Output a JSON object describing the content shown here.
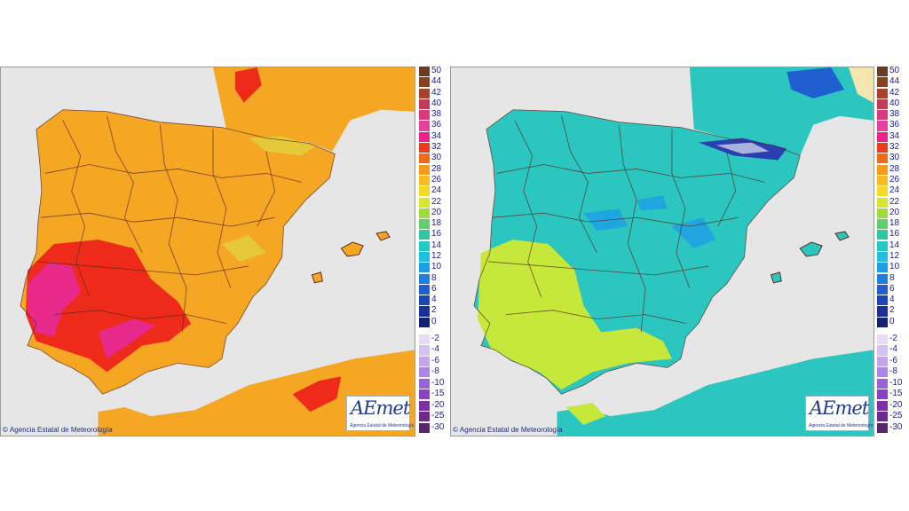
{
  "maps": [
    {
      "id": "left",
      "credit": "Agencia Estatal de Meteorología",
      "logo_text": "AEmet",
      "logo_subtext": "Agencia Estatal de Meteorología",
      "palette": {
        "sea": "#e6e6e6",
        "land": "#f5a623",
        "hot": "#ee2a1b",
        "hottest": "#e8298c",
        "cool": "#e6c93a",
        "border": "#5a2a1a"
      }
    },
    {
      "id": "right",
      "credit": "Agencia Estatal de Meteorología",
      "logo_text": "AEmet",
      "logo_subtext": "Agencia Estatal de Meteorología",
      "palette": {
        "sea": "#e6e6e6",
        "land": "#2cc6c0",
        "warm": "#c6e83a",
        "cold": "#1fa6e0",
        "coldest": "#2a3fb0",
        "border": "#5a2a1a"
      }
    }
  ],
  "legend": {
    "upper": [
      {
        "label": "50",
        "color": "#6b3a22"
      },
      {
        "label": "44",
        "color": "#8a3f1f"
      },
      {
        "label": "42",
        "color": "#a8402a"
      },
      {
        "label": "40",
        "color": "#c03b55"
      },
      {
        "label": "38",
        "color": "#d83c7c"
      },
      {
        "label": "36",
        "color": "#e6409f"
      },
      {
        "label": "34",
        "color": "#f0208a"
      },
      {
        "label": "32",
        "color": "#f03a1e"
      },
      {
        "label": "30",
        "color": "#f26a16"
      },
      {
        "label": "28",
        "color": "#f79a1a"
      },
      {
        "label": "26",
        "color": "#f8bb22"
      },
      {
        "label": "24",
        "color": "#f5d82a"
      },
      {
        "label": "22",
        "color": "#d4e62e"
      },
      {
        "label": "20",
        "color": "#9fdc3a"
      },
      {
        "label": "18",
        "color": "#5fcf6a"
      },
      {
        "label": "16",
        "color": "#32c6a0"
      },
      {
        "label": "14",
        "color": "#22c9c4"
      },
      {
        "label": "12",
        "color": "#1fbfe0"
      },
      {
        "label": "10",
        "color": "#1d9fe6"
      },
      {
        "label": "8",
        "color": "#1f7fe0"
      },
      {
        "label": "6",
        "color": "#1f5fd0"
      },
      {
        "label": "4",
        "color": "#1d45b8"
      },
      {
        "label": "2",
        "color": "#1a3098"
      },
      {
        "label": "0",
        "color": "#142070"
      }
    ],
    "lower": [
      {
        "label": "-2",
        "color": "#e6dcf5"
      },
      {
        "label": "-4",
        "color": "#d6c2f0"
      },
      {
        "label": "-6",
        "color": "#c3a6ea"
      },
      {
        "label": "-8",
        "color": "#ad86e2"
      },
      {
        "label": "-10",
        "color": "#9a62d8"
      },
      {
        "label": "-15",
        "color": "#8a3fc6"
      },
      {
        "label": "-20",
        "color": "#7d2faa"
      },
      {
        "label": "-25",
        "color": "#6e2a8a"
      },
      {
        "label": "-30",
        "color": "#5a246a"
      }
    ]
  }
}
